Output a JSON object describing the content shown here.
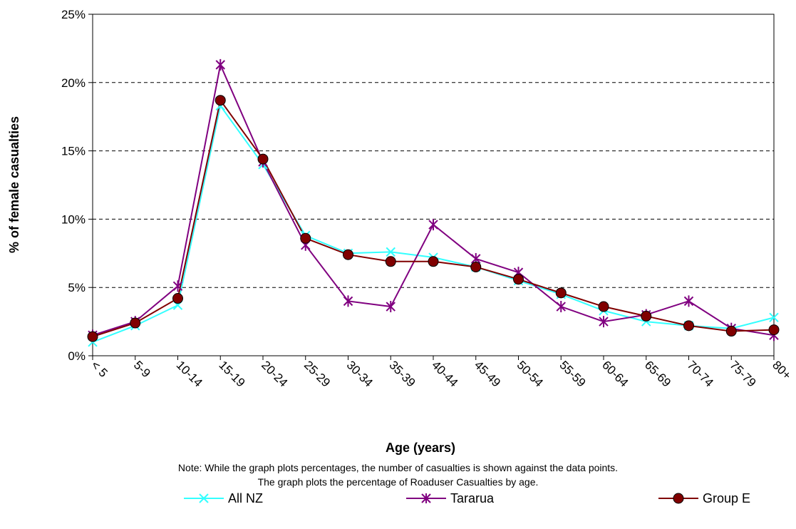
{
  "chart_data": {
    "type": "line",
    "title": "",
    "xlabel": "Age (years)",
    "ylabel": "% of female casualties",
    "categories": [
      "< 5",
      "5-9",
      "10-14",
      "15-19",
      "20-24",
      "25-29",
      "30-34",
      "35-39",
      "40-44",
      "45-49",
      "50-54",
      "55-59",
      "60-64",
      "65-69",
      "70-74",
      "75-79",
      "80+"
    ],
    "ylim": [
      0,
      25
    ],
    "yticks": [
      0,
      5,
      10,
      15,
      20,
      25
    ],
    "ytick_labels": [
      "0%",
      "5%",
      "10%",
      "15%",
      "20%",
      "25%"
    ],
    "grid": "horizontal dashed",
    "legend_position": "bottom",
    "series": [
      {
        "name": "All NZ",
        "color": "#33ffff",
        "marker": "x",
        "values": [
          1.0,
          2.2,
          3.7,
          18.3,
          14.0,
          8.8,
          7.5,
          7.6,
          7.2,
          6.5,
          5.5,
          4.5,
          3.3,
          2.5,
          2.2,
          2.0,
          2.8
        ]
      },
      {
        "name": "Tararua",
        "color": "#800080",
        "marker": "star",
        "values": [
          1.5,
          2.5,
          5.1,
          21.3,
          14.2,
          8.1,
          4.0,
          3.6,
          9.6,
          7.1,
          6.1,
          3.6,
          2.5,
          3.0,
          4.0,
          2.0,
          1.5
        ]
      },
      {
        "name": "Group E",
        "color": "#800000",
        "marker": "circle",
        "values": [
          1.4,
          2.4,
          4.2,
          18.7,
          14.4,
          8.6,
          7.4,
          6.9,
          6.9,
          6.5,
          5.6,
          4.6,
          3.6,
          2.9,
          2.2,
          1.8,
          1.9
        ]
      }
    ]
  },
  "notes": {
    "line1": "Note: While the graph plots percentages, the number of casualties is shown against the  data points.",
    "line2": "The graph plots the percentage of Roaduser Casualties by age."
  }
}
